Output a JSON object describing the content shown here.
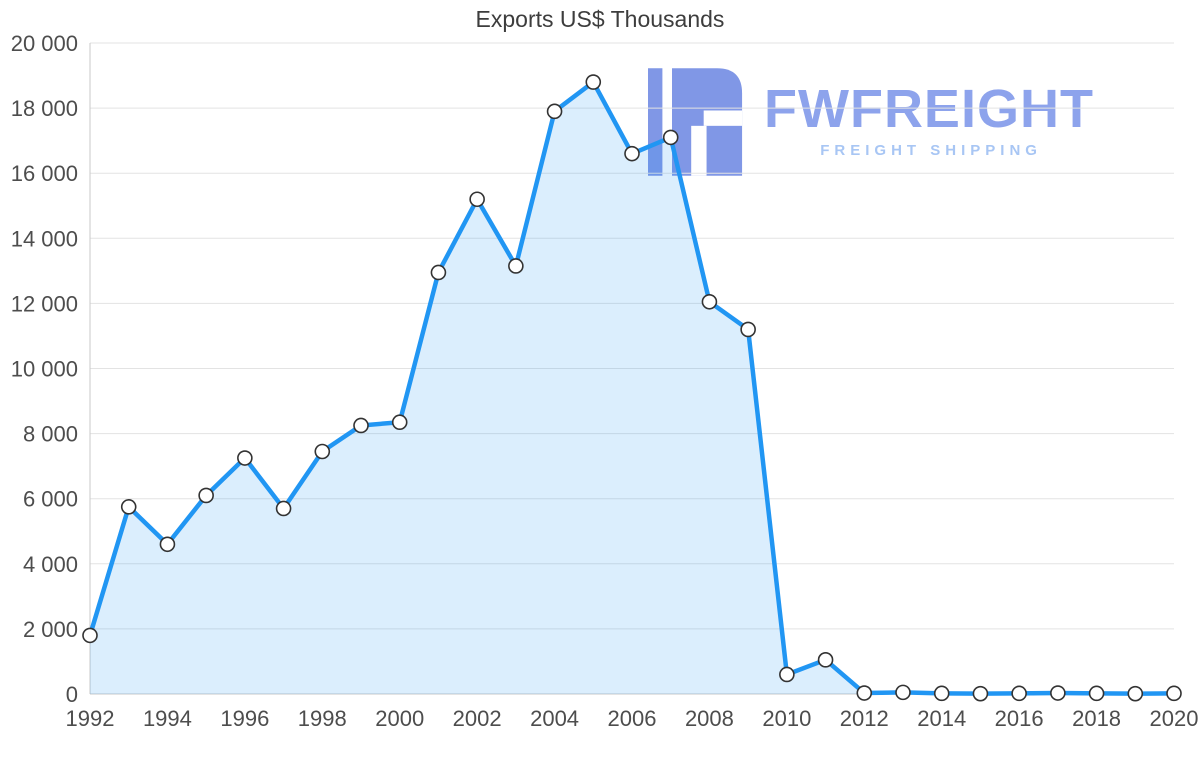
{
  "chart_data": {
    "type": "area",
    "title": "Exports US$ Thousands",
    "x": [
      1992,
      1993,
      1994,
      1995,
      1996,
      1997,
      1998,
      1999,
      2000,
      2001,
      2002,
      2003,
      2004,
      2005,
      2006,
      2007,
      2008,
      2009,
      2010,
      2011,
      2012,
      2013,
      2014,
      2015,
      2016,
      2017,
      2018,
      2019,
      2020
    ],
    "values": [
      1800,
      5750,
      4600,
      6100,
      7250,
      5700,
      7450,
      8250,
      8350,
      12950,
      15200,
      13150,
      17900,
      18800,
      16600,
      17100,
      12050,
      11200,
      600,
      1050,
      30,
      50,
      20,
      10,
      20,
      30,
      20,
      10,
      20
    ],
    "ylim": [
      0,
      20000
    ],
    "ytick_step": 2000,
    "ytick_labels": [
      "0",
      "2 000",
      "4 000",
      "6 000",
      "8 000",
      "10 000",
      "12 000",
      "14 000",
      "16 000",
      "18 000",
      "20 000"
    ],
    "xtick_labels": [
      "1992",
      "1994",
      "1996",
      "1998",
      "2000",
      "2002",
      "2004",
      "2006",
      "2008",
      "2010",
      "2012",
      "2014",
      "2016",
      "2018",
      "2020"
    ],
    "xlabel": "",
    "ylabel": "",
    "grid": true,
    "legend": "none",
    "line_color": "#2196f3",
    "fill_color": "rgba(33,150,243,0.16)",
    "marker_fill": "#ffffff",
    "marker_stroke": "#333333",
    "grid_color": "#e3e3e3",
    "axis_color": "#c9c9c9",
    "tick_label_color": "#4d4d4d"
  },
  "logo": {
    "name": "FWFREIGHT",
    "subtitle": "FREIGHT SHIPPING",
    "name_color": "#8da3ec",
    "subtitle_color": "#a8c6f4",
    "icon_color": "#8097e6"
  }
}
